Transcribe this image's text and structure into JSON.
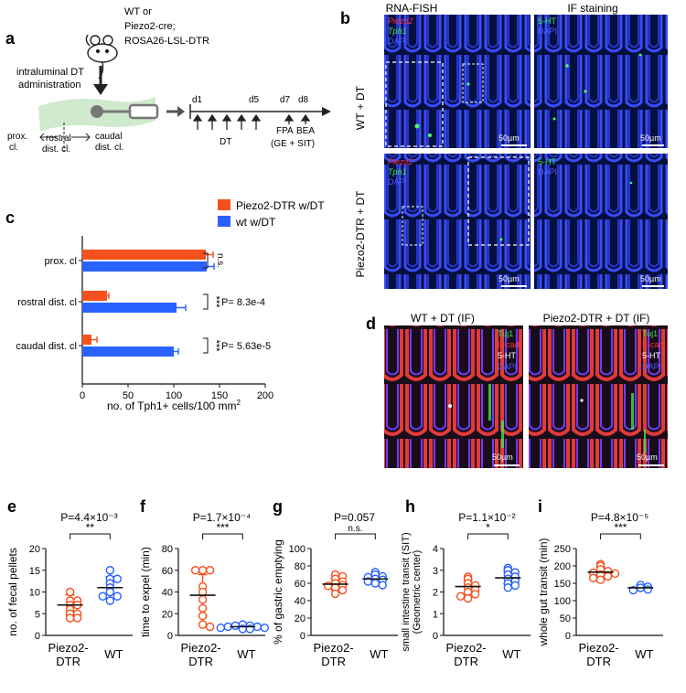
{
  "panel_a": {
    "letter": "a",
    "mouse_label_lines": [
      "WT or",
      "Piezo2-cre;",
      "ROSA26-LSL-DTR"
    ],
    "admin_lines": [
      "intraluminal DT",
      "administration"
    ],
    "prox": [
      "prox.",
      "cl."
    ],
    "rostral": [
      "rostral",
      "dist. cl."
    ],
    "caudal": [
      "caudal",
      "dist. cl."
    ],
    "days": [
      "d1",
      "d5",
      "d7",
      "d8"
    ],
    "dt_label": "DT",
    "fpa": "FPA",
    "bea": "BEA",
    "gesit": "(GE + SIT)"
  },
  "panel_b": {
    "letter": "b",
    "col1": "RNA-FISH",
    "col2": "IF staining",
    "row1": "WT + DT",
    "row2": "Piezo2-DTR + DT",
    "fish_labels": [
      "Piezo2",
      "Tph1",
      "DAPI"
    ],
    "if_labels": [
      "5-HT",
      "DAPI"
    ],
    "scale": "50µm"
  },
  "panel_d": {
    "letter": "d",
    "title1": "WT + DT (IF)",
    "title2": "Piezo2-DTR + DT (IF)",
    "labels": [
      "Tuj1",
      "E-cad",
      "5-HT",
      "DAPI"
    ],
    "scale": "50µm"
  },
  "colors": {
    "piezo": "#f4511e",
    "wt": "#2962ff",
    "red": "#ff2a2a",
    "green": "#33e04a",
    "blue": "#2b3cff"
  },
  "chart_data": [
    {
      "panel": "c",
      "type": "bar",
      "orientation": "horizontal",
      "categories": [
        "prox. cl",
        "rostral dist. cl",
        "caudal dist. cl"
      ],
      "series": [
        {
          "name": "Piezo2-DTR w/DT",
          "values": [
            135,
            27,
            10
          ],
          "errors": [
            8,
            2,
            6
          ]
        },
        {
          "name": "wt w/DT",
          "values": [
            136,
            103,
            100
          ],
          "errors": [
            8,
            10,
            5
          ]
        }
      ],
      "xlabel": "no. of Tph1+ cells/100 mm",
      "xlabel_sup": "2",
      "xlim": [
        0,
        200
      ],
      "xticks": [
        0,
        50,
        100,
        150,
        200
      ],
      "significance": [
        {
          "stars": "n.s.",
          "p": ""
        },
        {
          "stars": "***",
          "p": "P= 8.3e-4"
        },
        {
          "stars": "***",
          "p": "P= 5.63e-5"
        }
      ],
      "legend_position": "top-right"
    },
    {
      "panel": "e",
      "type": "scatter",
      "title": "P=4.4×10⁻³",
      "stars": "**",
      "ylabel": "no. of fecal pellets",
      "ylim": [
        0,
        20
      ],
      "yticks": [
        0,
        5,
        10,
        15,
        20
      ],
      "categories": [
        "Piezo2-DTR",
        "WT"
      ],
      "groups": [
        {
          "mean": 7,
          "sd": 2.3,
          "points": [
            10,
            8,
            8,
            7,
            7,
            6,
            5,
            5,
            4,
            4
          ]
        },
        {
          "mean": 11,
          "sd": 2.5,
          "points": [
            15,
            13,
            13,
            12,
            11,
            10,
            9,
            9,
            8
          ]
        }
      ]
    },
    {
      "panel": "f",
      "type": "scatter",
      "title": "P=1.7×10⁻⁴",
      "stars": "***",
      "ylabel": "time to expel (min)",
      "ylim": [
        0,
        80
      ],
      "yticks": [
        0,
        20,
        40,
        60,
        80
      ],
      "categories": [
        "Piezo2-DTR",
        "WT"
      ],
      "groups": [
        {
          "mean": 37,
          "sd": 19,
          "points": [
            60,
            60,
            60,
            45,
            40,
            33,
            25,
            18,
            10,
            8
          ]
        },
        {
          "mean": 8,
          "sd": 1.5,
          "points": [
            10,
            9,
            9,
            8,
            8,
            7,
            7,
            6,
            6
          ]
        }
      ]
    },
    {
      "panel": "g",
      "type": "scatter",
      "title": "P=0.057",
      "stars": "n.s.",
      "ylabel": "% of gastric emptying",
      "ylim": [
        0,
        100
      ],
      "yticks": [
        0,
        20,
        40,
        60,
        80,
        100
      ],
      "categories": [
        "Piezo2-DTR",
        "WT"
      ],
      "groups": [
        {
          "mean": 59,
          "sd": 7,
          "points": [
            70,
            68,
            65,
            62,
            60,
            58,
            57,
            55,
            52,
            48
          ]
        },
        {
          "mean": 65,
          "sd": 5,
          "points": [
            73,
            70,
            68,
            67,
            65,
            64,
            62,
            60,
            58
          ]
        }
      ]
    },
    {
      "panel": "h",
      "type": "scatter",
      "title": "P=1.1×10⁻²",
      "stars": "*",
      "ylabel": "small intestine transit (SIT)",
      "ylabel2": "(Geometric center)",
      "ylim": [
        0,
        4
      ],
      "yticks": [
        0,
        1,
        2,
        3,
        4
      ],
      "categories": [
        "Piezo2-DTR",
        "WT"
      ],
      "groups": [
        {
          "mean": 2.25,
          "sd": 0.3,
          "points": [
            2.7,
            2.6,
            2.4,
            2.3,
            2.2,
            2.1,
            2.0,
            1.9,
            1.8,
            1.7
          ]
        },
        {
          "mean": 2.65,
          "sd": 0.28,
          "points": [
            3.1,
            3.0,
            2.9,
            2.8,
            2.7,
            2.6,
            2.5,
            2.4,
            2.3,
            2.2
          ]
        }
      ]
    },
    {
      "panel": "i",
      "type": "scatter",
      "title": "P=4.8×10⁻⁵",
      "stars": "***",
      "ylabel": "whole gut transit (min)",
      "ylim": [
        0,
        250
      ],
      "yticks": [
        0,
        50,
        100,
        150,
        200,
        250
      ],
      "categories": [
        "Piezo2-DTR",
        "WT"
      ],
      "groups": [
        {
          "mean": 182,
          "sd": 15,
          "points": [
            205,
            200,
            190,
            185,
            180,
            178,
            175,
            170,
            165,
            160
          ]
        },
        {
          "mean": 137,
          "sd": 7,
          "points": [
            145,
            140,
            137,
            132,
            130
          ]
        }
      ]
    }
  ]
}
